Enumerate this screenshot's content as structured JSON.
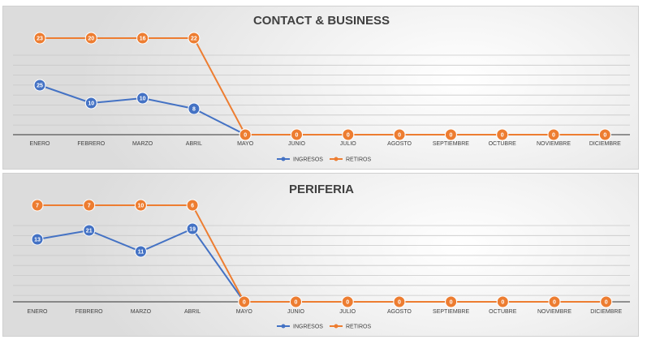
{
  "chart_data": [
    {
      "type": "line",
      "title": "CONTACT & BUSINESS",
      "categories": [
        "ENERO",
        "FEBRERO",
        "MARZO",
        "ABRIL",
        "MAYO",
        "JUNIO",
        "JULIO",
        "AGOSTO",
        "SEPTIEMBRE",
        "OCTUBRE",
        "NOVIEMBRE",
        "DICIEMBRE"
      ],
      "series": [
        {
          "name": "INGRESOS",
          "color": "#4472C4",
          "values": [
            25,
            10,
            10,
            8,
            0,
            0,
            0,
            0,
            0,
            0,
            0,
            0
          ]
        },
        {
          "name": "RETIROS",
          "color": "#ED7D31",
          "values": [
            23,
            20,
            16,
            22,
            0,
            0,
            0,
            0,
            0,
            0,
            0,
            0
          ]
        }
      ],
      "gridlines": true,
      "legend": "bottom"
    },
    {
      "type": "line",
      "title": "PERIFERIA",
      "categories": [
        "ENERO",
        "FEBRERO",
        "MARZO",
        "ABRIL",
        "MAYO",
        "JUNIO",
        "JULIO",
        "AGOSTO",
        "SEPTIEMBRE",
        "OCTUBRE",
        "NOVIEMBRE",
        "DICIEMBRE"
      ],
      "series": [
        {
          "name": "INGRESOS",
          "color": "#4472C4",
          "values": [
            13,
            21,
            11,
            19,
            0,
            0,
            0,
            0,
            0,
            0,
            0,
            0
          ]
        },
        {
          "name": "RETIROS",
          "color": "#ED7D31",
          "values": [
            7,
            7,
            10,
            6,
            0,
            0,
            0,
            0,
            0,
            0,
            0,
            0
          ]
        }
      ],
      "gridlines": true,
      "legend": "bottom"
    }
  ]
}
